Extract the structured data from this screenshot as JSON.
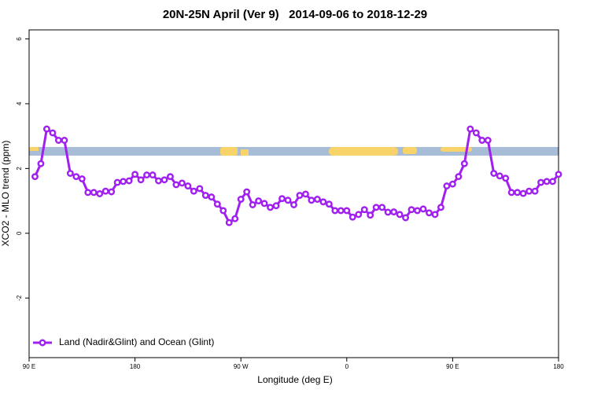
{
  "chart_data": {
    "type": "line",
    "title": "20N-25N April (Ver 9)   2014-09-06 to 2018-12-29",
    "xlabel": "Longitude (deg E)",
    "ylabel": "XCO2 - MLO trend (ppm)",
    "xlim": [
      90,
      540
    ],
    "ylim": [
      -3.84,
      6.28
    ],
    "xticks": [
      {
        "value": 90,
        "label": "90 E"
      },
      180,
      {
        "value": 270,
        "label": "90 W"
      },
      {
        "value": 360,
        "label": "0"
      },
      {
        "value": 450,
        "label": "90 E"
      },
      {
        "value": 540,
        "label": "180"
      }
    ],
    "yticks": [
      -2,
      0,
      2,
      4,
      6
    ],
    "legend": "bottom-left",
    "x": [
      95,
      100,
      105,
      110,
      115,
      120,
      125,
      130,
      135,
      140,
      145,
      150,
      155,
      160,
      165,
      170,
      175,
      180,
      185,
      190,
      195,
      200,
      205,
      210,
      215,
      220,
      225,
      230,
      235,
      240,
      245,
      250,
      255,
      260,
      265,
      270,
      275,
      280,
      285,
      290,
      295,
      300,
      305,
      310,
      315,
      320,
      325,
      330,
      335,
      340,
      345,
      350,
      355,
      360,
      365,
      370,
      375,
      380,
      385,
      390,
      395,
      400,
      405,
      410,
      415,
      420,
      425,
      430,
      435,
      440,
      445,
      450,
      455,
      460,
      465,
      470,
      475,
      480,
      485,
      490,
      495,
      500,
      505,
      510,
      515,
      520,
      525,
      530,
      535,
      540
    ],
    "series": [
      {
        "name": "Land (Nadir&Glint) and Ocean (Glint)",
        "color": "#a020f0",
        "values": [
          1.75,
          2.15,
          3.22,
          3.1,
          2.87,
          2.87,
          1.85,
          1.75,
          1.68,
          1.26,
          1.26,
          1.22,
          1.3,
          1.28,
          1.57,
          1.6,
          1.62,
          1.82,
          1.65,
          1.8,
          1.8,
          1.62,
          1.65,
          1.75,
          1.5,
          1.55,
          1.46,
          1.3,
          1.38,
          1.17,
          1.12,
          0.9,
          0.7,
          0.33,
          0.45,
          1.05,
          1.28,
          0.88,
          1.0,
          0.92,
          0.8,
          0.85,
          1.07,
          1.02,
          0.88,
          1.17,
          1.21,
          1.02,
          1.05,
          0.97,
          0.9,
          0.7,
          0.7,
          0.7,
          0.5,
          0.58,
          0.73,
          0.56,
          0.8,
          0.8,
          0.65,
          0.66,
          0.58,
          0.48,
          0.73,
          0.7,
          0.75,
          0.63,
          0.58,
          0.8,
          1.46,
          1.52,
          1.75,
          2.15,
          3.22,
          3.1,
          2.87,
          2.87,
          1.85,
          1.77,
          1.7,
          1.26,
          1.26,
          1.23,
          1.3,
          1.3,
          1.57,
          1.6,
          1.6,
          1.82
        ]
      }
    ]
  }
}
